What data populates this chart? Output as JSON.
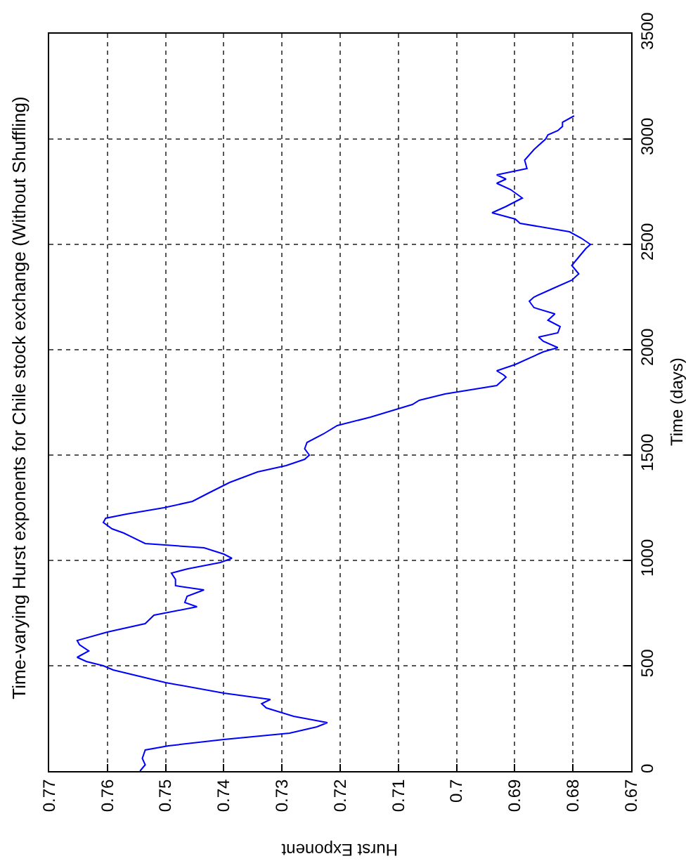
{
  "chart_data": {
    "type": "line",
    "title": "Time-varying Hurst exponents for Chile stock exchange (Without Shuffling)",
    "xlabel": "Hurst Exponent",
    "y2label": "Time (days)",
    "series": [
      {
        "color": "#0000ff",
        "axis": "y2",
        "x": [
          0.7544,
          0.7535,
          0.754,
          0.7535,
          0.7495,
          0.74,
          0.7287,
          0.724,
          0.7222,
          0.728,
          0.7327,
          0.7335,
          0.732,
          0.74,
          0.75,
          0.759,
          0.7607,
          0.7636,
          0.7652,
          0.7632,
          0.7648,
          0.7652,
          0.76,
          0.7535,
          0.752,
          0.7446,
          0.7467,
          0.7463,
          0.7434,
          0.7483,
          0.7483,
          0.749,
          0.7462,
          0.7406,
          0.7386,
          0.74,
          0.7434,
          0.7535,
          0.7572,
          0.7592,
          0.7607,
          0.7603,
          0.7567,
          0.7503,
          0.7454,
          0.7426,
          0.739,
          0.7342,
          0.7293,
          0.7261,
          0.7253,
          0.7261,
          0.7257,
          0.7229,
          0.7205,
          0.7148,
          0.71,
          0.7076,
          0.7064,
          0.702,
          0.6931,
          0.6915,
          0.6919,
          0.6931,
          0.6899,
          0.6851,
          0.6826,
          0.6851,
          0.6859,
          0.6826,
          0.6822,
          0.6843,
          0.6831,
          0.6867,
          0.6875,
          0.6867,
          0.6835,
          0.6802,
          0.679,
          0.6802,
          0.679,
          0.6778,
          0.677,
          0.6786,
          0.6806,
          0.6891,
          0.6899,
          0.6939,
          0.6915,
          0.6887,
          0.6907,
          0.6931,
          0.6915,
          0.6931,
          0.6879,
          0.6883,
          0.6867,
          0.6847,
          0.6843,
          0.6826,
          0.6818,
          0.6818,
          0.6798
        ],
        "values": [
          0,
          30,
          60,
          100,
          120,
          150,
          180,
          210,
          230,
          260,
          300,
          320,
          340,
          370,
          420,
          480,
          500,
          520,
          540,
          570,
          600,
          620,
          660,
          700,
          740,
          780,
          800,
          830,
          860,
          880,
          910,
          940,
          960,
          990,
          1010,
          1030,
          1060,
          1080,
          1130,
          1150,
          1180,
          1200,
          1220,
          1250,
          1280,
          1320,
          1370,
          1420,
          1450,
          1480,
          1500,
          1530,
          1560,
          1600,
          1640,
          1680,
          1720,
          1740,
          1760,
          1790,
          1830,
          1870,
          1880,
          1900,
          1930,
          1990,
          2010,
          2040,
          2060,
          2080,
          2110,
          2140,
          2170,
          2200,
          2230,
          2250,
          2290,
          2330,
          2360,
          2400,
          2440,
          2480,
          2500,
          2530,
          2560,
          2600,
          2620,
          2650,
          2680,
          2720,
          2760,
          2790,
          2810,
          2830,
          2860,
          2900,
          2950,
          3000,
          3020,
          3040,
          3060,
          3080,
          3110
        ]
      }
    ],
    "xlim": [
      0.77,
      0.67
    ],
    "xticks": [
      0.77,
      0.76,
      0.75,
      0.74,
      0.73,
      0.72,
      0.71,
      0.7,
      0.69,
      0.68,
      0.67
    ],
    "y2lim": [
      0,
      3500
    ],
    "y2ticks": [
      0,
      500,
      1000,
      1500,
      2000,
      2500,
      3000,
      3500
    ],
    "grid": true,
    "line_style": "solid"
  }
}
